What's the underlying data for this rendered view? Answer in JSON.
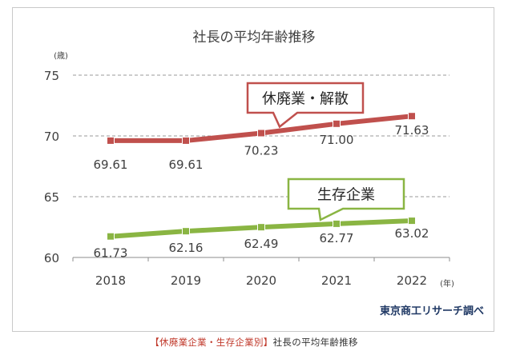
{
  "figure": {
    "caption_prefix": "【休廃業企業・生存企業別】",
    "caption_text": "社長の平均年齢推移",
    "source": "東京商工リサーチ調べ"
  },
  "chart_data": {
    "type": "line",
    "title": "社長の平均年齢推移",
    "ylabel": "(歳)",
    "xlabel": "(年)",
    "categories": [
      "2018",
      "2019",
      "2020",
      "2021",
      "2022"
    ],
    "ylim": [
      60,
      75
    ],
    "yticks": [
      "60",
      "65",
      "70",
      "75"
    ],
    "grid": "horizontal-dashed",
    "series": [
      {
        "name": "休廃業・解散",
        "values": [
          69.61,
          69.61,
          70.23,
          71.0,
          71.63
        ],
        "labels": [
          "69.61",
          "69.61",
          "70.23",
          "71.00",
          "71.63"
        ],
        "color": "#c0504d"
      },
      {
        "name": "生存企業",
        "values": [
          61.73,
          62.16,
          62.49,
          62.77,
          63.02
        ],
        "labels": [
          "61.73",
          "62.16",
          "62.49",
          "62.77",
          "63.02"
        ],
        "color": "#8ab543"
      }
    ]
  }
}
